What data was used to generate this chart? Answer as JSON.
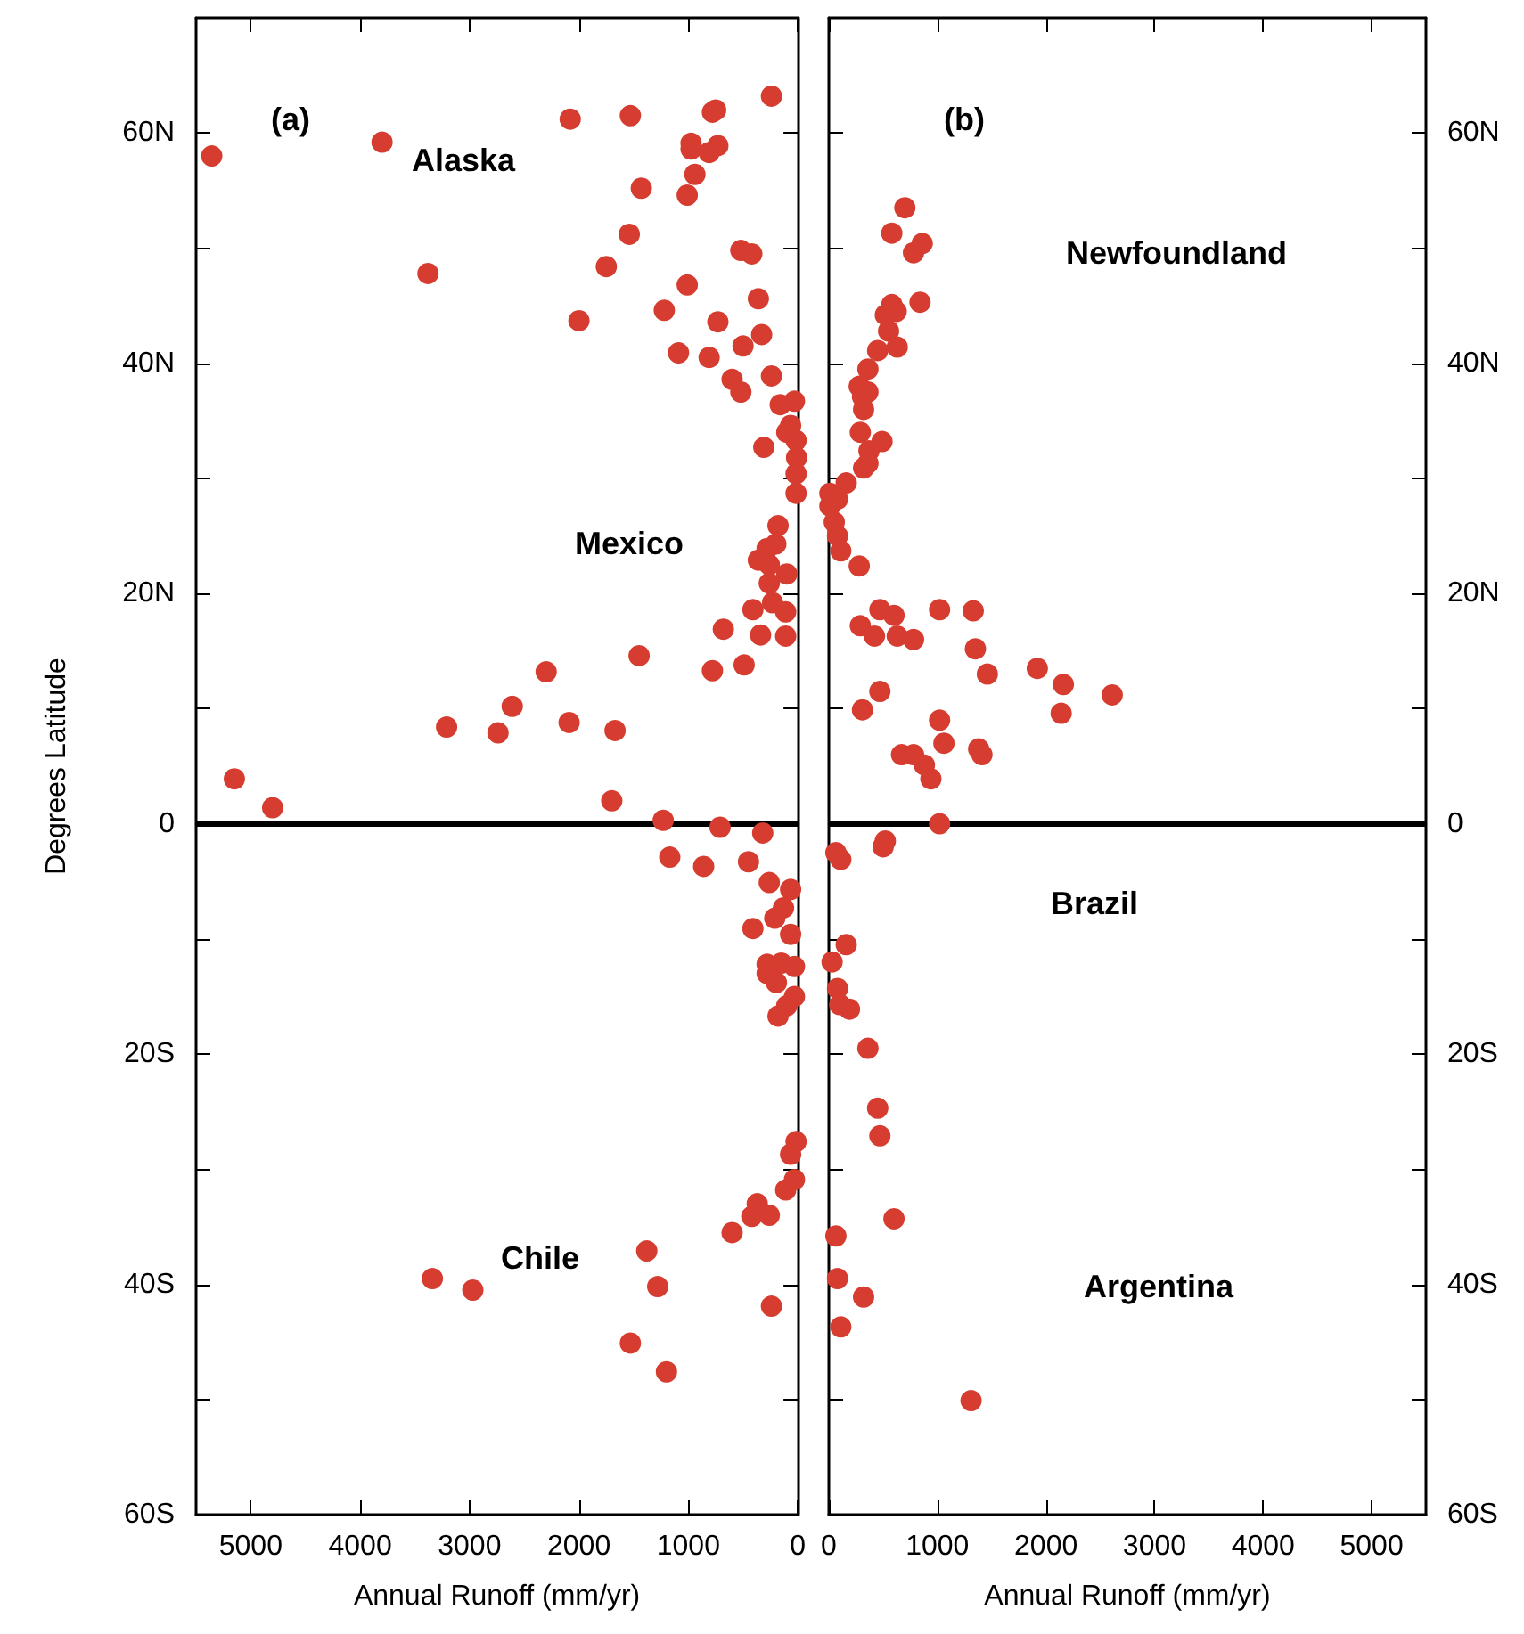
{
  "chart_data": [
    {
      "type": "scatter",
      "xlabel": "Annual Runoff (mm/yr)",
      "ylabel": "Degrees Latitude",
      "color": "#d63c2f",
      "marker": "circle",
      "grid": false,
      "xlim": [
        5500,
        0
      ],
      "xticks": [
        5000,
        4000,
        3000,
        2000,
        1000,
        0
      ],
      "ylim": [
        -60,
        70
      ],
      "yticks": [
        {
          "value": 60,
          "label": "60N"
        },
        {
          "value": 50,
          "label": null
        },
        {
          "value": 40,
          "label": "40N"
        },
        {
          "value": 30,
          "label": null
        },
        {
          "value": 20,
          "label": "20N"
        },
        {
          "value": 10,
          "label": null
        },
        {
          "value": 0,
          "label": "0"
        },
        {
          "value": -10,
          "label": null
        },
        {
          "value": -20,
          "label": "20S"
        },
        {
          "value": -30,
          "label": null
        },
        {
          "value": -40,
          "label": "40S"
        },
        {
          "value": -50,
          "label": null
        },
        {
          "value": -60,
          "label": "60S"
        }
      ],
      "ref_lines": [
        {
          "axis": "y",
          "value": 0,
          "color": "#000000"
        }
      ],
      "annotations": [
        "(a)",
        "Alaska",
        "Mexico",
        "Chile"
      ],
      "x": [
        5357,
        3800,
        2080,
        1530,
        780,
        750,
        240,
        975,
        975,
        730,
        810,
        940,
        1430,
        1010,
        1540,
        520,
        420,
        3380,
        1750,
        1010,
        360,
        1220,
        730,
        2000,
        330,
        500,
        1090,
        810,
        240,
        600,
        520,
        160,
        30,
        65,
        100,
        15,
        10,
        310,
        15,
        15,
        180,
        200,
        280,
        360,
        260,
        100,
        260,
        410,
        230,
        110,
        680,
        340,
        110,
        490,
        780,
        1450,
        2300,
        2610,
        3210,
        2740,
        2090,
        1670,
        5150,
        4800,
        1700,
        1230,
        710,
        320,
        1170,
        860,
        450,
        260,
        65,
        130,
        210,
        410,
        65,
        280,
        150,
        30,
        280,
        195,
        30,
        100,
        180,
        15,
        65,
        30,
        110,
        370,
        420,
        260,
        600,
        1380,
        3340,
        2970,
        1280,
        240,
        1530,
        1200
      ],
      "values": [
        58.0,
        59.2,
        61.2,
        61.5,
        61.8,
        62.0,
        63.2,
        59.1,
        58.6,
        58.9,
        58.3,
        56.4,
        55.2,
        54.6,
        51.2,
        49.8,
        49.5,
        47.8,
        48.4,
        46.8,
        45.6,
        44.6,
        43.6,
        43.7,
        42.5,
        41.5,
        40.9,
        40.5,
        38.9,
        38.6,
        37.5,
        36.4,
        36.7,
        34.6,
        34.0,
        33.3,
        31.8,
        32.7,
        30.4,
        28.7,
        25.9,
        24.3,
        23.9,
        22.9,
        22.5,
        21.7,
        20.9,
        18.6,
        19.2,
        18.4,
        16.9,
        16.4,
        16.3,
        13.8,
        13.3,
        14.6,
        13.2,
        10.2,
        8.4,
        7.9,
        8.8,
        8.1,
        3.9,
        1.4,
        2.0,
        0.3,
        -0.3,
        -0.8,
        -2.9,
        -3.7,
        -3.3,
        -5.1,
        -5.7,
        -7.3,
        -8.2,
        -9.1,
        -9.6,
        -12.2,
        -12.1,
        -12.4,
        -13.0,
        -13.8,
        -15.0,
        -15.8,
        -16.7,
        -27.6,
        -28.7,
        -30.9,
        -31.8,
        -33.0,
        -34.1,
        -34.0,
        -35.5,
        -37.1,
        -39.5,
        -40.5,
        -40.2,
        -41.9,
        -45.1,
        -47.6
      ]
    },
    {
      "type": "scatter",
      "xlabel": "Annual Runoff (mm/yr)",
      "color": "#d63c2f",
      "marker": "circle",
      "grid": false,
      "xlim": [
        0,
        5500
      ],
      "xticks": [
        0,
        1000,
        2000,
        3000,
        4000,
        5000
      ],
      "ylim": [
        -60,
        70
      ],
      "yticks": [
        {
          "value": 60,
          "label": "60N"
        },
        {
          "value": 50,
          "label": null
        },
        {
          "value": 40,
          "label": "40N"
        },
        {
          "value": 30,
          "label": null
        },
        {
          "value": 20,
          "label": "20N"
        },
        {
          "value": 10,
          "label": null
        },
        {
          "value": 0,
          "label": "0"
        },
        {
          "value": -10,
          "label": null
        },
        {
          "value": -20,
          "label": "20S"
        },
        {
          "value": -30,
          "label": null
        },
        {
          "value": -40,
          "label": "40S"
        },
        {
          "value": -50,
          "label": null
        },
        {
          "value": -60,
          "label": "60S"
        }
      ],
      "ref_lines": [
        {
          "axis": "y",
          "value": 0,
          "color": "#000000"
        }
      ],
      "annotations": [
        "(b)",
        "Newfoundland",
        "Brazil",
        "Argentina"
      ],
      "x": [
        700,
        580,
        780,
        860,
        840,
        580,
        520,
        620,
        550,
        450,
        630,
        360,
        280,
        360,
        310,
        320,
        290,
        490,
        370,
        360,
        320,
        160,
        10,
        80,
        10,
        50,
        80,
        110,
        280,
        470,
        600,
        1020,
        1330,
        290,
        420,
        630,
        780,
        1350,
        1460,
        1920,
        2160,
        2610,
        2140,
        470,
        310,
        1020,
        1060,
        1380,
        1410,
        670,
        780,
        880,
        940,
        1020,
        520,
        500,
        65,
        110,
        160,
        30,
        80,
        100,
        190,
        360,
        450,
        470,
        600,
        65,
        80,
        320,
        110,
        1310
      ],
      "values": [
        53.5,
        51.3,
        49.6,
        50.4,
        45.3,
        45.1,
        44.2,
        44.5,
        42.8,
        41.1,
        41.4,
        39.5,
        38.0,
        37.5,
        37.1,
        36.0,
        34.0,
        33.2,
        32.4,
        31.3,
        30.9,
        29.6,
        28.7,
        28.2,
        27.6,
        26.2,
        25.0,
        23.7,
        22.4,
        18.6,
        18.1,
        18.6,
        18.5,
        17.2,
        16.3,
        16.3,
        16.0,
        15.2,
        13.0,
        13.5,
        12.1,
        11.2,
        9.6,
        11.5,
        9.9,
        9.0,
        7.0,
        6.5,
        6.0,
        6.0,
        6.0,
        5.1,
        3.9,
        0.0,
        -1.5,
        -2.0,
        -2.5,
        -3.1,
        -10.5,
        -12.0,
        -14.3,
        -15.7,
        -16.1,
        -19.5,
        -24.7,
        -27.1,
        -34.3,
        -35.8,
        -39.5,
        -41.1,
        -43.7,
        -50.1
      ]
    }
  ]
}
